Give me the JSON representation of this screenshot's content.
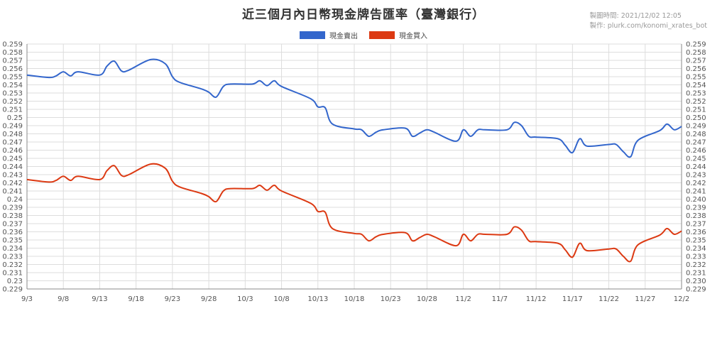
{
  "header": {
    "title": "近三個月內日幣現金牌告匯率（臺灣銀行）",
    "meta_time": "製圖時間: 2021/12/02 12:05",
    "meta_author": "製作: plurk.com/konomi_xrates_bot"
  },
  "colors": {
    "sell": "#3366cc",
    "buy": "#dc3912",
    "grid": "#dddddd"
  },
  "chart_data": {
    "type": "line",
    "title": "近三個月內日幣現金牌告匯率（臺灣銀行）",
    "xlabel": "",
    "ylabel": "",
    "ylim": [
      0.229,
      0.259
    ],
    "y_ticks": [
      "0.229",
      "0.23",
      "0.231",
      "0.232",
      "0.233",
      "0.234",
      "0.235",
      "0.236",
      "0.237",
      "0.238",
      "0.239",
      "0.24",
      "0.241",
      "0.242",
      "0.243",
      "0.244",
      "0.245",
      "0.246",
      "0.247",
      "0.248",
      "0.249",
      "0.25",
      "0.251",
      "0.252",
      "0.253",
      "0.254",
      "0.255",
      "0.256",
      "0.257",
      "0.258",
      "0.259"
    ],
    "y_ticks_right": [
      "0.229",
      "0.230",
      "0.231",
      "0.232",
      "0.233",
      "0.234",
      "0.235",
      "0.236",
      "0.237",
      "0.238",
      "0.239",
      "0.240",
      "0.241",
      "0.242",
      "0.243",
      "0.244",
      "0.245",
      "0.246",
      "0.247",
      "0.248",
      "0.249",
      "0.250",
      "0.251",
      "0.252",
      "0.253",
      "0.254",
      "0.255",
      "0.256",
      "0.257",
      "0.258",
      "0.259"
    ],
    "x_ticks": [
      "9/3",
      "9/8",
      "9/13",
      "9/18",
      "9/23",
      "9/28",
      "10/3",
      "10/8",
      "10/13",
      "10/18",
      "10/23",
      "10/28",
      "11/2",
      "11/7",
      "11/12",
      "11/17",
      "11/22",
      "11/27",
      "12/2"
    ],
    "legend_position": "top-center",
    "grid": true,
    "x": [
      "9/3",
      "9/6",
      "9/7",
      "9/8",
      "9/9",
      "9/10",
      "9/13",
      "9/14",
      "9/15",
      "9/16",
      "9/17",
      "9/20",
      "9/22",
      "9/23",
      "9/24",
      "9/27",
      "9/28",
      "9/29",
      "9/30",
      "10/1",
      "10/4",
      "10/5",
      "10/6",
      "10/7",
      "10/8",
      "10/12",
      "10/13",
      "10/14",
      "10/15",
      "10/18",
      "10/19",
      "10/20",
      "10/21",
      "10/22",
      "10/25",
      "10/26",
      "10/27",
      "10/28",
      "10/29",
      "11/1",
      "11/2",
      "11/3",
      "11/4",
      "11/5",
      "11/8",
      "11/9",
      "11/10",
      "11/11",
      "11/12",
      "11/15",
      "11/16",
      "11/17",
      "11/18",
      "11/19",
      "11/22",
      "11/23",
      "11/24",
      "11/25",
      "11/26",
      "11/29",
      "11/30",
      "12/1",
      "12/2"
    ],
    "series": [
      {
        "name": "現金賣出",
        "color": "#3366cc",
        "values": [
          0.2552,
          0.2549,
          0.2551,
          0.2556,
          0.2551,
          0.2556,
          0.2552,
          0.2563,
          0.2569,
          0.2557,
          0.2558,
          0.2571,
          0.2566,
          0.255,
          0.2543,
          0.2535,
          0.2531,
          0.2525,
          0.2538,
          0.2541,
          0.2541,
          0.2545,
          0.2539,
          0.2545,
          0.2538,
          0.2523,
          0.2513,
          0.2512,
          0.2492,
          0.2486,
          0.2485,
          0.2477,
          0.2482,
          0.2485,
          0.2487,
          0.2477,
          0.2481,
          0.2485,
          0.2482,
          0.2471,
          0.2485,
          0.2477,
          0.2485,
          0.2485,
          0.2485,
          0.2494,
          0.249,
          0.2477,
          0.2476,
          0.2474,
          0.2466,
          0.2457,
          0.2474,
          0.2465,
          0.2467,
          0.2467,
          0.2458,
          0.2452,
          0.2472,
          0.2484,
          0.2492,
          0.2485,
          0.2489
        ]
      },
      {
        "name": "現金買入",
        "color": "#dc3912",
        "values": [
          0.2424,
          0.2421,
          0.2423,
          0.2428,
          0.2423,
          0.2428,
          0.2424,
          0.2435,
          0.2441,
          0.2429,
          0.243,
          0.2443,
          0.2438,
          0.2422,
          0.2415,
          0.2407,
          0.2403,
          0.2397,
          0.241,
          0.2413,
          0.2413,
          0.2417,
          0.2411,
          0.2417,
          0.241,
          0.2395,
          0.2385,
          0.2384,
          0.2364,
          0.2358,
          0.2357,
          0.2349,
          0.2354,
          0.2357,
          0.2359,
          0.2349,
          0.2353,
          0.2357,
          0.2354,
          0.2343,
          0.2357,
          0.2349,
          0.2357,
          0.2357,
          0.2357,
          0.2366,
          0.2362,
          0.2349,
          0.2348,
          0.2346,
          0.2338,
          0.2329,
          0.2346,
          0.2337,
          0.2339,
          0.2339,
          0.233,
          0.2324,
          0.2344,
          0.2356,
          0.2364,
          0.2357,
          0.2361
        ]
      }
    ]
  }
}
